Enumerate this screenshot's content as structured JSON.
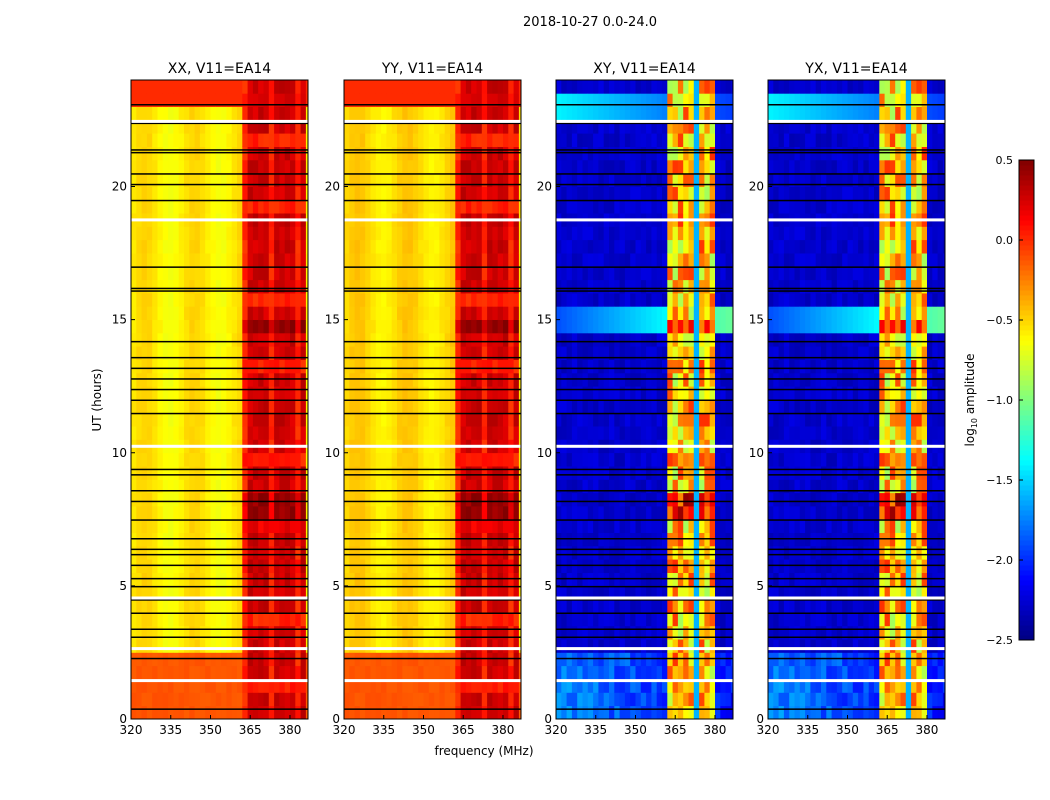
{
  "chart_data": {
    "type": "heatmap",
    "suptitle": "2018-10-27 0.0-24.0",
    "xlabel": "frequency (MHz)",
    "ylabel": "UT (hours)",
    "xlim": [
      320,
      386.8
    ],
    "ylim": [
      0,
      24
    ],
    "xticks": [
      "320",
      "335",
      "350",
      "365",
      "380"
    ],
    "xtick_values": [
      320,
      335,
      350,
      365,
      380
    ],
    "yticks": [
      "0",
      "5",
      "10",
      "15",
      "20"
    ],
    "ytick_values": [
      0,
      5,
      10,
      15,
      20
    ],
    "panels": [
      {
        "title": "XX, V11=EA14",
        "kind": "parallel",
        "base": -0.6,
        "band": [
          363,
          385
        ]
      },
      {
        "title": "YY, V11=EA14",
        "kind": "parallel",
        "base": -0.55,
        "band": [
          363,
          385
        ]
      },
      {
        "title": "XY, V11=EA14",
        "kind": "cross",
        "base": -2.35,
        "band": [
          363,
          380
        ]
      },
      {
        "title": "YX, V11=EA14",
        "kind": "cross",
        "base": -2.35,
        "band": [
          363,
          380
        ]
      }
    ],
    "flagged_times_black": [
      0.4,
      2.3,
      3.1,
      3.4,
      4.0,
      4.5,
      5.0,
      5.3,
      5.8,
      6.2,
      6.4,
      6.8,
      7.5,
      8.2,
      8.6,
      9.2,
      9.4,
      11.5,
      12.0,
      12.4,
      12.8,
      13.2,
      13.6,
      14.2,
      16.1,
      16.2,
      17.0,
      19.5,
      20.1,
      20.5,
      21.3,
      21.4,
      22.4,
      23.1
    ],
    "flagged_times_white": [
      1.5,
      2.7,
      4.6,
      10.3,
      18.8,
      22.5
    ],
    "colorbar": {
      "label": "log",
      "label_sub": "10",
      "label_suffix": " amplitude",
      "range": [
        -2.5,
        0.5
      ],
      "colormap": "jet",
      "ticks": [
        "0.5",
        "0.0",
        "−0.5",
        "−1.0",
        "−1.5",
        "−2.0",
        "−2.5"
      ],
      "tick_values": [
        0.5,
        0.0,
        -0.5,
        -1.0,
        -1.5,
        -2.0,
        -2.5
      ]
    }
  }
}
